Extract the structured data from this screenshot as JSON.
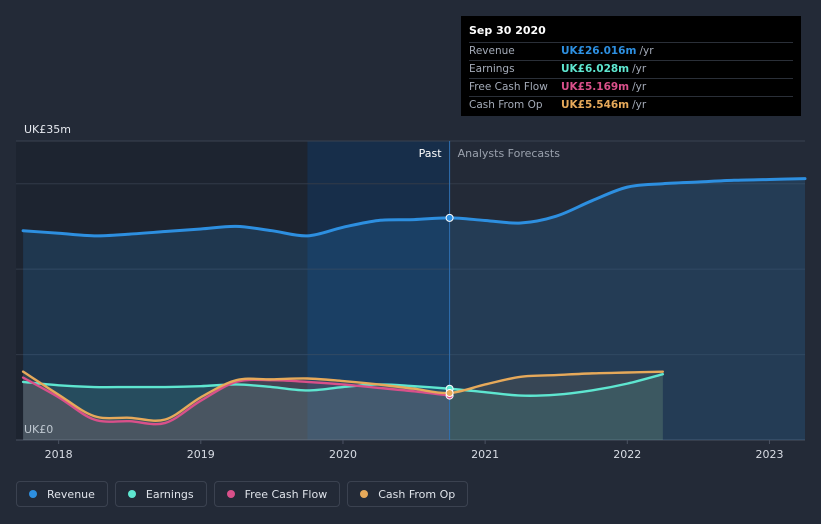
{
  "chart_data": {
    "type": "line",
    "currency_unit": "UK£",
    "y_top_label": "UK£35m",
    "y_bottom_label": "UK£0",
    "ylim": [
      0,
      35
    ],
    "xlim": [
      2017.7,
      2023.25
    ],
    "x_ticks": [
      2018,
      2019,
      2020,
      2021,
      2022,
      2023
    ],
    "x_tick_labels": [
      "2018",
      "2019",
      "2020",
      "2021",
      "2022",
      "2023"
    ],
    "past_label": "Past",
    "forecast_label": "Analysts Forecasts",
    "divider_x": 2020.75,
    "series": [
      {
        "name": "Revenue",
        "color": "#2d8fe0",
        "x": [
          2017.75,
          2018.0,
          2018.25,
          2018.5,
          2018.75,
          2019.0,
          2019.25,
          2019.5,
          2019.75,
          2020.0,
          2020.25,
          2020.5,
          2020.75,
          2021.0,
          2021.25,
          2021.5,
          2021.75,
          2022.0,
          2022.25,
          2022.5,
          2022.75,
          2023.0,
          2023.25
        ],
        "values": [
          24.5,
          24.2,
          23.9,
          24.1,
          24.4,
          24.7,
          25.0,
          24.5,
          23.9,
          24.9,
          25.7,
          25.8,
          26.0,
          25.7,
          25.4,
          26.2,
          28.0,
          29.6,
          30.0,
          30.2,
          30.4,
          30.5,
          30.6
        ]
      },
      {
        "name": "Earnings",
        "color": "#5ee6d0",
        "x": [
          2017.75,
          2018.0,
          2018.25,
          2018.5,
          2018.75,
          2019.0,
          2019.25,
          2019.5,
          2019.75,
          2020.0,
          2020.25,
          2020.5,
          2020.75,
          2021.0,
          2021.25,
          2021.5,
          2021.75,
          2022.0,
          2022.25
        ],
        "values": [
          6.8,
          6.4,
          6.2,
          6.2,
          6.2,
          6.3,
          6.5,
          6.2,
          5.8,
          6.2,
          6.5,
          6.3,
          6.0,
          5.6,
          5.2,
          5.3,
          5.8,
          6.6,
          7.7
        ]
      },
      {
        "name": "Free Cash Flow",
        "color": "#d9508a",
        "x": [
          2017.75,
          2018.0,
          2018.25,
          2018.5,
          2018.75,
          2019.0,
          2019.25,
          2019.5,
          2019.75,
          2020.0,
          2020.25,
          2020.5,
          2020.75
        ],
        "values": [
          7.3,
          5.0,
          2.4,
          2.2,
          2.0,
          4.6,
          6.8,
          7.0,
          6.8,
          6.5,
          6.1,
          5.7,
          5.2
        ]
      },
      {
        "name": "Cash From Op",
        "color": "#e6a95a",
        "x": [
          2017.75,
          2018.0,
          2018.25,
          2018.5,
          2018.75,
          2019.0,
          2019.25,
          2019.5,
          2019.75,
          2020.0,
          2020.25,
          2020.5,
          2020.75,
          2021.0,
          2021.25,
          2021.5,
          2021.75,
          2022.0,
          2022.25
        ],
        "values": [
          8.0,
          5.3,
          2.8,
          2.6,
          2.4,
          5.0,
          7.0,
          7.1,
          7.2,
          6.9,
          6.5,
          6.0,
          5.5,
          6.5,
          7.4,
          7.6,
          7.8,
          7.9,
          8.0
        ]
      }
    ]
  },
  "tooltip": {
    "date": "Sep 30 2020",
    "rows": [
      {
        "label": "Revenue",
        "value": "UK£26.016m",
        "unit": "/yr",
        "color": "#2d8fe0"
      },
      {
        "label": "Earnings",
        "value": "UK£6.028m",
        "unit": "/yr",
        "color": "#5ee6d0"
      },
      {
        "label": "Free Cash Flow",
        "value": "UK£5.169m",
        "unit": "/yr",
        "color": "#d9508a"
      },
      {
        "label": "Cash From Op",
        "value": "UK£5.546m",
        "unit": "/yr",
        "color": "#e6a95a"
      }
    ]
  },
  "legend": [
    {
      "label": "Revenue",
      "color": "#2d8fe0"
    },
    {
      "label": "Earnings",
      "color": "#5ee6d0"
    },
    {
      "label": "Free Cash Flow",
      "color": "#d9508a"
    },
    {
      "label": "Cash From Op",
      "color": "#e6a95a"
    }
  ]
}
